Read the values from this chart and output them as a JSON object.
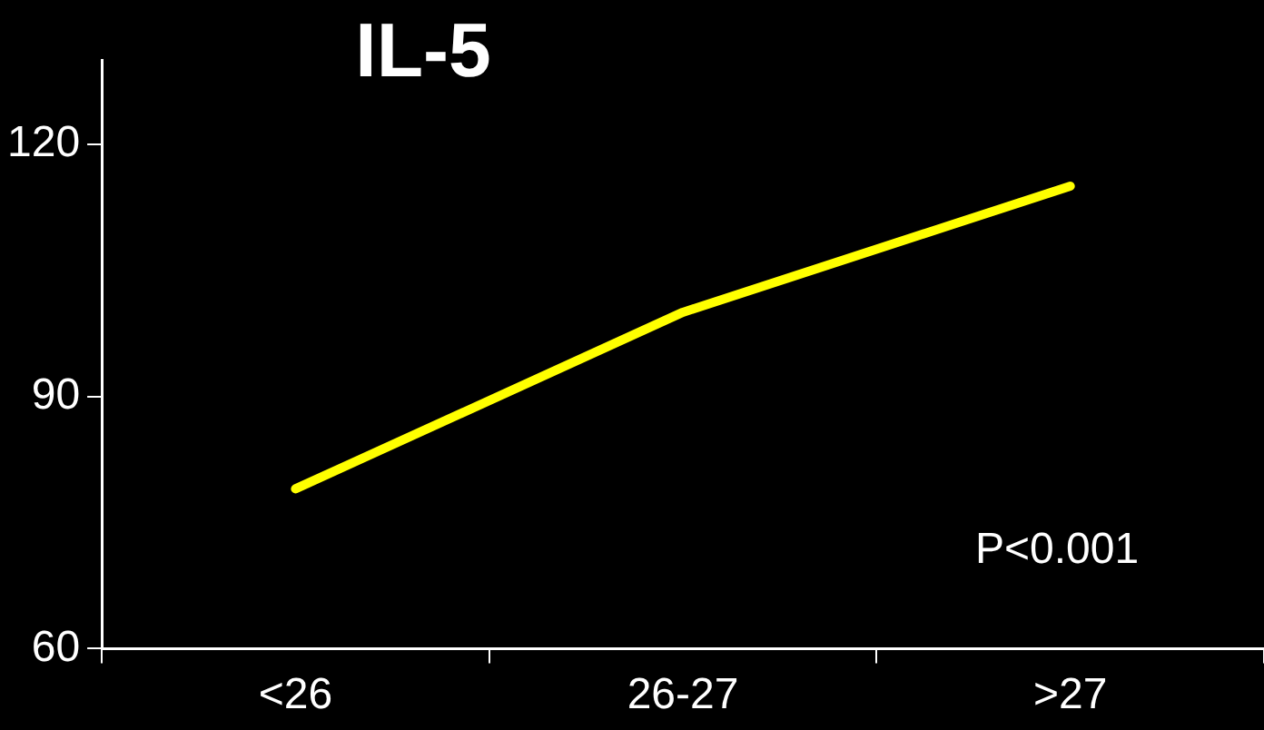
{
  "chart_data": {
    "type": "line",
    "title": "IL-5",
    "categories": [
      "<26",
      "26-27",
      ">27"
    ],
    "series": [
      {
        "color": "#ffff00",
        "values": [
          79,
          100,
          115
        ]
      }
    ],
    "ylim": [
      60,
      130
    ],
    "yticks": [
      60,
      90,
      120
    ],
    "grid": false,
    "legend": false,
    "marker": "none",
    "line_style": "solid",
    "annotations": [
      "P<0.001"
    ]
  }
}
